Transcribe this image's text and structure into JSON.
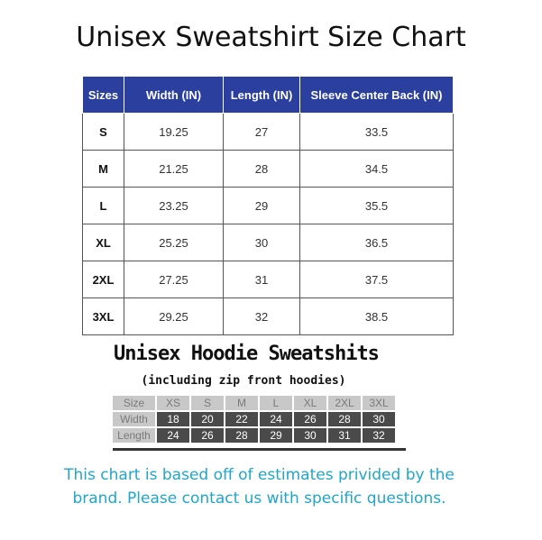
{
  "title": "Unisex Sweatshirt Size Chart",
  "main_table": {
    "headers": [
      "Sizes",
      "Width (IN)",
      "Length (IN)",
      "Sleeve Center Back (IN)"
    ],
    "rows": [
      [
        "S",
        "19.25",
        "27",
        "33.5"
      ],
      [
        "M",
        "21.25",
        "28",
        "34.5"
      ],
      [
        "L",
        "23.25",
        "29",
        "35.5"
      ],
      [
        "XL",
        "25.25",
        "30",
        "36.5"
      ],
      [
        "2XL",
        "27.25",
        "31",
        "37.5"
      ],
      [
        "3XL",
        "29.25",
        "32",
        "38.5"
      ]
    ]
  },
  "hoodie": {
    "title": "Unisex Hoodie Sweatshits",
    "subtitle": "(including zip front hoodies)",
    "header_label": "Size",
    "sizes": [
      "XS",
      "S",
      "M",
      "L",
      "XL",
      "2XL",
      "3XL"
    ],
    "rows": [
      {
        "label": "Width",
        "values": [
          "18",
          "20",
          "22",
          "24",
          "26",
          "28",
          "30"
        ]
      },
      {
        "label": "Length",
        "values": [
          "24",
          "26",
          "28",
          "29",
          "30",
          "31",
          "32"
        ]
      }
    ]
  },
  "note": {
    "line1": "This chart is based off of estimates privided by the",
    "line2": "brand. Please contact us with specific questions."
  },
  "colors": {
    "header_blue": "#2a3f9e",
    "note_cyan": "#1fa6c9",
    "hoodie_dark": "#4a4a4a",
    "hoodie_light": "#c8c8c8"
  }
}
